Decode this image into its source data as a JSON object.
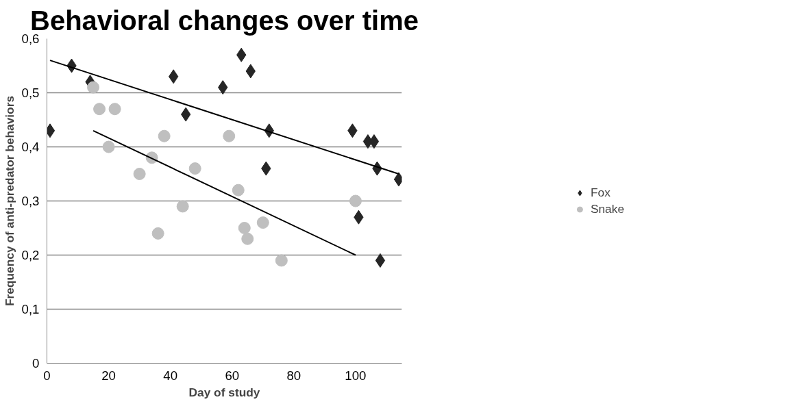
{
  "chart_data": {
    "type": "scatter",
    "title": "Behavioral changes over time",
    "xlabel": "Day of study",
    "ylabel": "Frequency of anti-predator behaviors",
    "series": [
      {
        "name": "Fox",
        "color": "#262626",
        "marker": "diamond",
        "x": [
          1,
          8,
          14,
          41,
          45,
          57,
          63,
          66,
          71,
          72,
          99,
          101,
          104,
          106,
          107,
          108,
          114
        ],
        "values": [
          0.43,
          0.55,
          0.52,
          0.53,
          0.46,
          0.51,
          0.57,
          0.54,
          0.36,
          0.43,
          0.43,
          0.27,
          0.41,
          0.41,
          0.36,
          0.19,
          0.34
        ]
      },
      {
        "name": "Snake",
        "color": "#bfbfbf",
        "marker": "circle",
        "x": [
          15,
          17,
          20,
          22,
          30,
          34,
          36,
          38,
          44,
          48,
          59,
          62,
          64,
          65,
          70,
          76,
          100
        ],
        "values": [
          0.51,
          0.47,
          0.4,
          0.47,
          0.35,
          0.38,
          0.24,
          0.42,
          0.29,
          0.36,
          0.42,
          0.32,
          0.25,
          0.23,
          0.26,
          0.19,
          0.3
        ]
      },
      {
        "type": "line",
        "color": "#000000",
        "x": [
          1,
          114
        ],
        "values": [
          0.56,
          0.35
        ]
      },
      {
        "type": "line",
        "color": "#000000",
        "x": [
          15,
          100
        ],
        "values": [
          0.43,
          0.2
        ]
      }
    ],
    "xlim": [
      0,
      115
    ],
    "xticks": [
      0,
      20,
      40,
      60,
      80,
      100
    ],
    "ylim": [
      0,
      0.6
    ],
    "yticks": [
      0,
      {
        "value": 0.1,
        "label": "0,1"
      },
      {
        "value": 0.2,
        "label": "0,2"
      },
      {
        "value": 0.3,
        "label": "0,3"
      },
      {
        "value": 0.4,
        "label": "0,4"
      },
      {
        "value": 0.5,
        "label": "0,5"
      },
      {
        "value": 0.6,
        "label": "0,6"
      }
    ],
    "grid": "y",
    "legend": "right"
  }
}
